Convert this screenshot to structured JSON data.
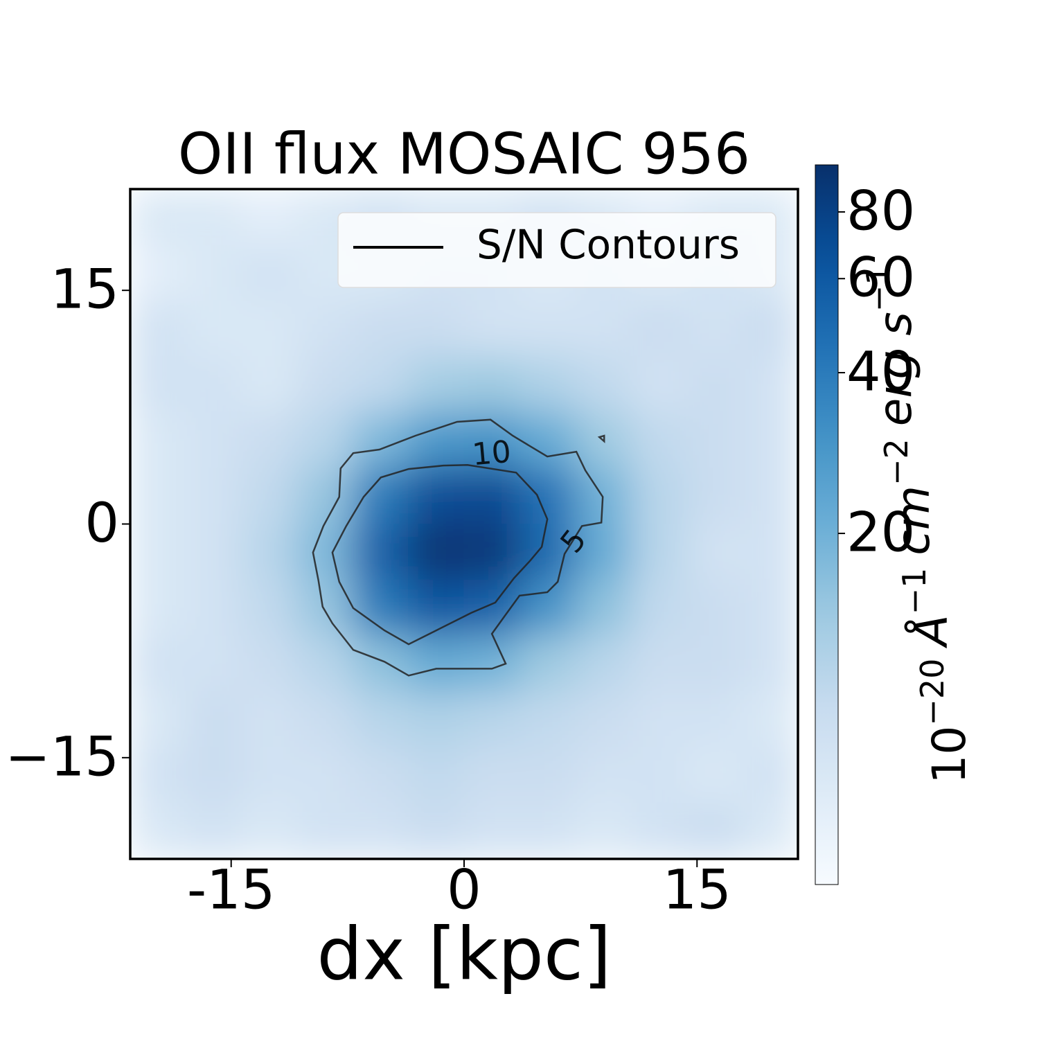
{
  "chart_data": {
    "type": "heatmap",
    "title": "OII flux MOSAIC 956",
    "xlabel": "dx [kpc]",
    "xlim": [
      -21.5,
      21.5
    ],
    "ylim": [
      -21.5,
      21.5
    ],
    "xticks": [
      -15,
      0,
      15
    ],
    "yticks": [
      {
        "value": -15,
        "label": "−15"
      },
      0,
      15
    ],
    "z": [
      [
        7,
        7,
        6,
        7,
        8,
        7,
        7,
        8,
        7,
        6,
        7,
        7
      ],
      [
        6,
        7,
        8,
        7,
        7,
        8,
        8,
        7,
        8,
        7,
        8,
        7
      ],
      [
        8,
        7,
        7,
        8,
        9,
        9,
        8,
        8,
        8,
        9,
        8,
        9
      ],
      [
        8,
        8,
        7,
        9,
        10,
        13,
        14,
        12,
        10,
        8,
        9,
        8
      ],
      [
        7,
        8,
        9,
        11,
        18,
        28,
        30,
        22,
        14,
        10,
        9,
        8
      ],
      [
        7,
        8,
        10,
        15,
        40,
        70,
        72,
        45,
        20,
        11,
        9,
        8
      ],
      [
        7,
        8,
        11,
        18,
        55,
        92,
        88,
        50,
        22,
        11,
        8,
        8
      ],
      [
        7,
        8,
        10,
        15,
        40,
        62,
        55,
        30,
        16,
        10,
        9,
        8
      ],
      [
        8,
        8,
        9,
        11,
        16,
        22,
        20,
        14,
        11,
        9,
        9,
        8
      ],
      [
        7,
        9,
        8,
        9,
        11,
        12,
        11,
        10,
        9,
        8,
        8,
        7
      ],
      [
        8,
        9,
        8,
        8,
        9,
        10,
        9,
        9,
        8,
        8,
        7,
        8
      ],
      [
        7,
        8,
        7,
        8,
        8,
        9,
        8,
        8,
        7,
        8,
        9,
        7
      ]
    ],
    "colormap": [
      "#f7fbff",
      "#deebf7",
      "#c6dbef",
      "#9ecae1",
      "#6baed6",
      "#4292c6",
      "#2171b5",
      "#08519c",
      "#08306b"
    ],
    "colorbar": {
      "scale": "log",
      "clim": [
        4.4,
        98
      ],
      "ticks": [
        20,
        40,
        60,
        80
      ],
      "label": [
        {
          "text": "10",
          "sup": "−20"
        },
        {
          "text": "Å",
          "sup": "−1"
        },
        {
          "text": "cm",
          "sup": "−2"
        },
        {
          "text": "erg s",
          "sup": "−1"
        }
      ]
    },
    "contours": [
      {
        "level": 10,
        "color": "#222222",
        "x": [
          3.35,
          4.69,
          5.36,
          5.0,
          4.24,
          3.21,
          2.01,
          0.45,
          -1.79,
          -3.57,
          -5.13,
          -7.14,
          -8.04,
          -8.48,
          -7.59,
          -6.47,
          -5.36,
          -3.57,
          -1.34,
          0.22
        ],
        "y": [
          3.3,
          1.88,
          0.31,
          -1.47,
          -2.37,
          -3.48,
          -5.04,
          -5.71,
          -6.83,
          -7.72,
          -6.83,
          -5.4,
          -3.71,
          -1.83,
          -0.13,
          1.74,
          2.99,
          3.53,
          3.75,
          3.79
        ]
      },
      {
        "level": 5,
        "color": "#222222",
        "x": [
          6.47,
          6.03,
          5.36,
          3.57,
          2.59,
          1.79,
          2.68,
          1.79,
          -1.79,
          -3.57,
          -5.13,
          -7.14,
          -8.48,
          -9.11,
          -9.38,
          -9.73,
          -9.06,
          -8.04,
          -7.95,
          -7.14,
          -5.45,
          -3.13,
          -0.45,
          1.7,
          3.13,
          5.36,
          7.23,
          7.81,
          8.93,
          8.84,
          7.59
        ],
        "y": [
          -1.92,
          -3.71,
          -4.38,
          -4.6,
          -5.94,
          -7.05,
          -8.97,
          -9.29,
          -9.29,
          -9.73,
          -8.84,
          -8.08,
          -6.38,
          -5.31,
          -3.62,
          -1.83,
          -0.13,
          1.74,
          3.57,
          4.55,
          4.78,
          5.67,
          6.56,
          6.7,
          5.67,
          4.33,
          4.64,
          3.44,
          1.74,
          0.09,
          -0.13
        ]
      },
      {
        "level": 5,
        "color": "#222222",
        "x": [
          8.71,
          9.02,
          9.02
        ],
        "y": [
          5.58,
          5.67,
          5.31
        ]
      }
    ],
    "legend": {
      "location": "upper right",
      "entries": [
        {
          "name": "S/N Contours",
          "color": "#000000"
        }
      ]
    }
  }
}
